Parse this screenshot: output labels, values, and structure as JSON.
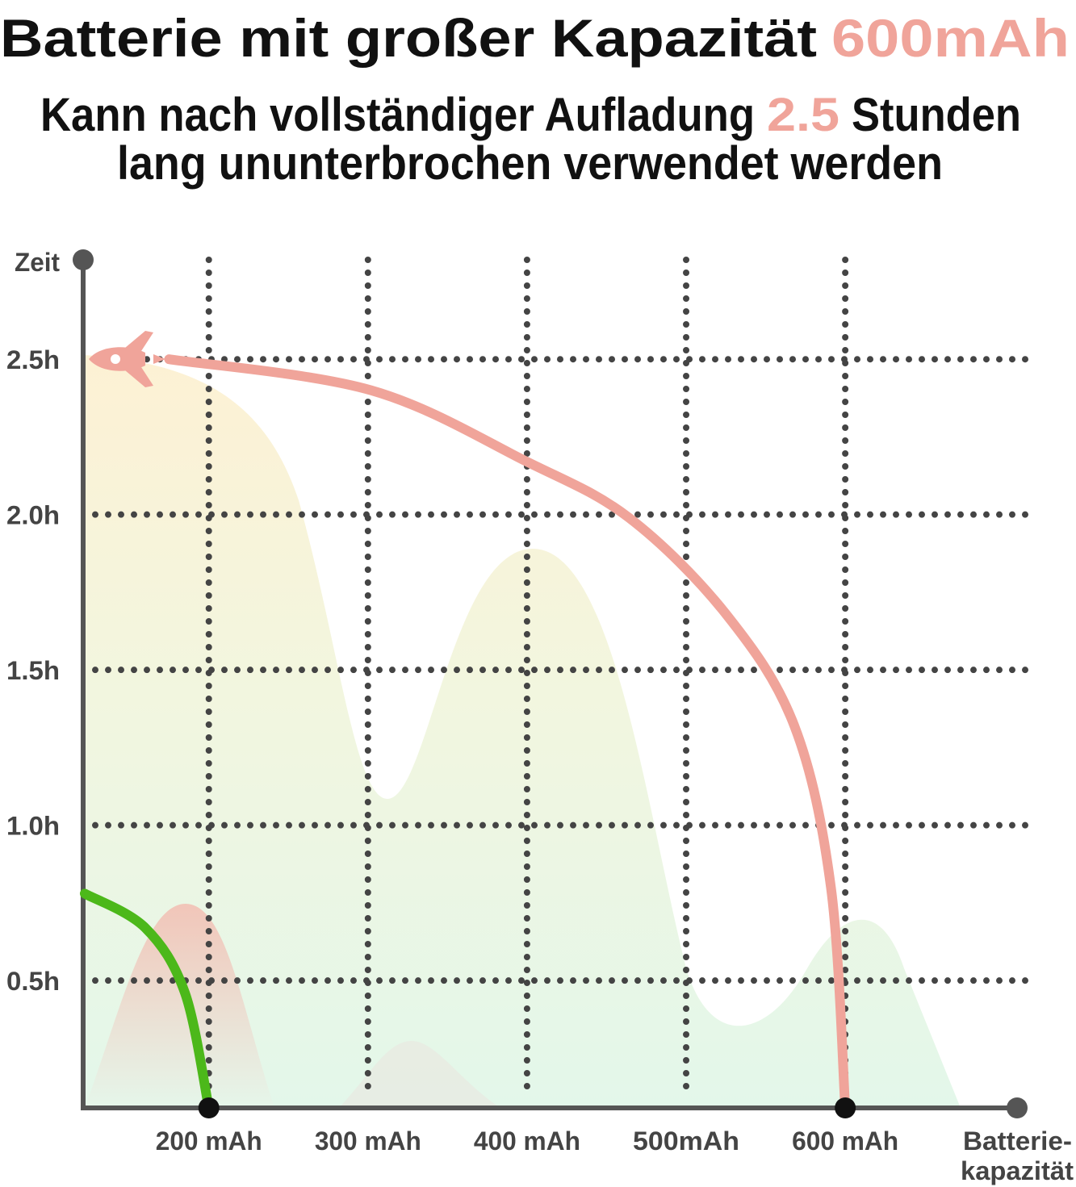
{
  "chart_data": {
    "type": "line",
    "title": "Batterie mit großer Kapazität",
    "title_highlight": "600mAh",
    "subtitle": [
      "Kann nach vollständiger Aufladung",
      "2.5",
      "Stunden",
      "lang ununterbrochen verwendet werden"
    ],
    "y_label": "Zeit",
    "x_label": [
      "Batterie-",
      "kapazität"
    ],
    "xlim": [
      121,
      708
    ],
    "ylim": [
      0.09,
      2.82
    ],
    "xticks": [
      {
        "value": 200,
        "label": "200 mAh"
      },
      {
        "value": 300,
        "label": "300 mAh"
      },
      {
        "value": 400,
        "label": "400 mAh"
      },
      {
        "value": 500,
        "label": "500mAh"
      },
      {
        "value": 600,
        "label": "600 mAh"
      }
    ],
    "yticks": [
      {
        "value": 0.5,
        "label": "0.5h"
      },
      {
        "value": 1.0,
        "label": "1.0h"
      },
      {
        "value": 1.5,
        "label": "1.5h"
      },
      {
        "value": 2.0,
        "label": "2.0h"
      },
      {
        "value": 2.5,
        "label": "2.5h"
      }
    ],
    "grid": true,
    "series": [
      {
        "color": "#f0a49a",
        "x": [
          600,
          591,
          568,
          525,
          464,
          400,
          302,
          175
        ],
        "values": [
          0.09,
          0.8,
          1.32,
          1.68,
          1.99,
          2.17,
          2.4,
          2.5
        ]
      },
      {
        "color": "#4cb81a",
        "x": [
          122,
          160,
          185,
          200
        ],
        "values": [
          0.78,
          0.67,
          0.46,
          0.09
        ]
      }
    ]
  }
}
